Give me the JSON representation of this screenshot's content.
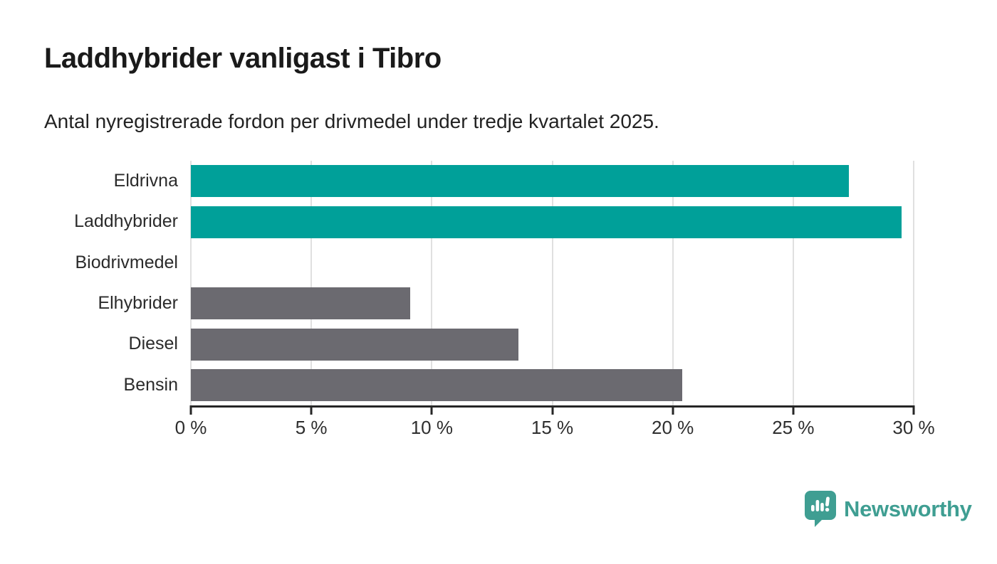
{
  "header": {
    "title": "Laddhybrider vanligast i Tibro",
    "subtitle": "Antal nyregistrerade fordon per drivmedel under tredje kvartalet 2025."
  },
  "chart_data": {
    "type": "bar",
    "orientation": "horizontal",
    "title": "Laddhybrider vanligast i Tibro",
    "subtitle": "Antal nyregistrerade fordon per drivmedel under tredje kvartalet 2025.",
    "categories": [
      "Eldrivna",
      "Laddhybrider",
      "Biodrivmedel",
      "Elhybrider",
      "Diesel",
      "Bensin"
    ],
    "values": [
      27.3,
      29.5,
      0,
      9.1,
      13.6,
      20.4
    ],
    "unit": "%",
    "xlim": [
      0,
      30
    ],
    "x_tick_values": [
      0,
      5,
      10,
      15,
      20,
      25,
      30
    ],
    "x_tick_labels": [
      "0 %",
      "5 %",
      "10 %",
      "15 %",
      "20 %",
      "25 %",
      "30 %"
    ],
    "grid": true,
    "legend": false,
    "bar_colors": [
      "#00a099",
      "#00a099",
      "#00a099",
      "#6b6a70",
      "#6b6a70",
      "#6b6a70"
    ],
    "highlight_color": "#00a099",
    "default_color": "#6b6a70",
    "gridline_color": "#e0e0e0",
    "axis_color": "#262626"
  },
  "footer": {
    "brand": "Newsworthy",
    "brand_color": "#3f9e92",
    "logo_icon": "newsworthy-speech-bubble-chart-icon"
  }
}
